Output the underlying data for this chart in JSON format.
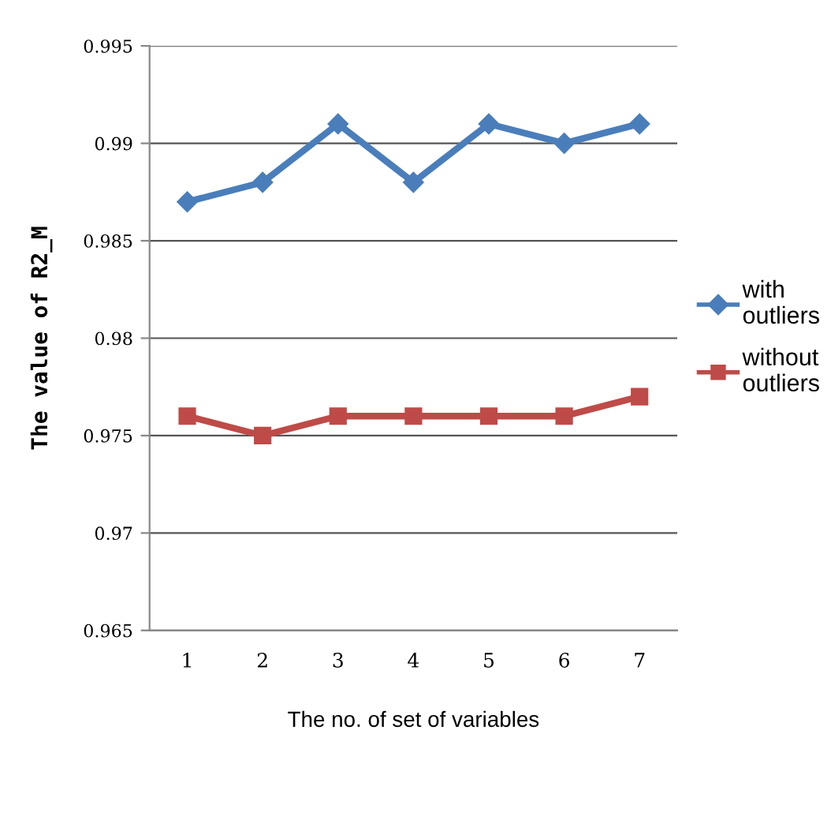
{
  "chart_data": {
    "type": "line",
    "xlabel": "The no. of set of variables",
    "ylabel": "The value of R2_M",
    "categories": [
      "1",
      "2",
      "3",
      "4",
      "5",
      "6",
      "7"
    ],
    "series": [
      {
        "name": "with outliers",
        "color": "#4a7ebb",
        "marker": "diamond",
        "values": [
          0.987,
          0.988,
          0.991,
          0.988,
          0.991,
          0.99,
          0.991
        ]
      },
      {
        "name": "without outliers",
        "color": "#be4b48",
        "marker": "square",
        "values": [
          0.976,
          0.975,
          0.976,
          0.976,
          0.976,
          0.976,
          0.977
        ]
      }
    ],
    "ylim": [
      0.965,
      0.995
    ],
    "yticks": [
      0.965,
      {
        "value": 0.97,
        "label": "0.97"
      },
      0.975,
      {
        "value": 0.98,
        "label": "0.98"
      },
      0.985,
      {
        "value": 0.99,
        "label": "0.99"
      },
      0.995
    ],
    "grid": "y",
    "legend": "right",
    "line_style": "solid"
  }
}
